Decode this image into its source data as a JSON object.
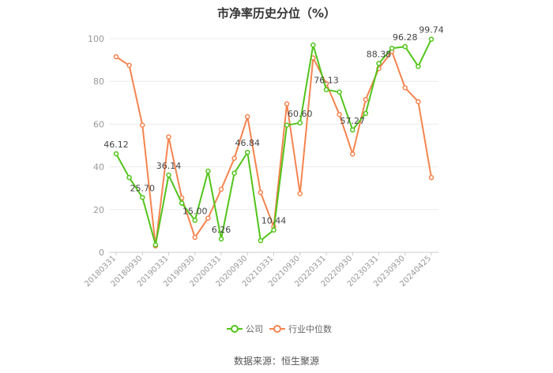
{
  "chart_data": {
    "type": "line",
    "title": "市净率历史分位（%）",
    "source": "数据来源：恒生聚源",
    "ylim": [
      0,
      100
    ],
    "yticks": [
      0,
      20,
      40,
      60,
      80,
      100
    ],
    "grid": "horizontal",
    "legend_position": "bottom",
    "x": [
      "20180331",
      "20180630",
      "20180930",
      "20181231",
      "20190331",
      "20190630",
      "20190930",
      "20191231",
      "20200331",
      "20200630",
      "20200930",
      "20201231",
      "20210331",
      "20210630",
      "20210930",
      "20211231",
      "20220331",
      "20220630",
      "20220930",
      "20221231",
      "20230331",
      "20230630",
      "20230930",
      "20231231",
      "20240425"
    ],
    "xtick_labels": [
      "20180331",
      "20180930",
      "20190331",
      "20190930",
      "20200331",
      "20200930",
      "20210331",
      "20210930",
      "20220331",
      "20220930",
      "20230331",
      "20230930",
      "20240425"
    ],
    "series": [
      {
        "name": "公司",
        "color": "#52c41a",
        "values": [
          46.12,
          35,
          25.7,
          3.5,
          36.14,
          23,
          15.0,
          38,
          6.26,
          37,
          46.84,
          5.5,
          10.44,
          59.5,
          60.6,
          97,
          76.13,
          75,
          57.27,
          65,
          88.38,
          95.5,
          96.28,
          87,
          99.74
        ],
        "labels": {
          "0": "46.12",
          "2": "25.70",
          "4": "36.14",
          "6": "15.00",
          "8": "6.26",
          "10": "46.84",
          "12": "10.44",
          "14": "60.60",
          "16": "76.13",
          "18": "57.27",
          "20": "88.38",
          "22": "96.28",
          "24": "99.74"
        }
      },
      {
        "name": "行业中位数",
        "color": "#f5844f",
        "values": [
          91.5,
          87.5,
          59.5,
          3,
          54,
          25.5,
          7,
          16,
          29.5,
          44,
          63.5,
          28,
          12,
          69.5,
          27.5,
          91,
          79,
          64.5,
          46,
          71.5,
          86,
          94,
          77,
          70.5,
          35
        ]
      }
    ]
  }
}
